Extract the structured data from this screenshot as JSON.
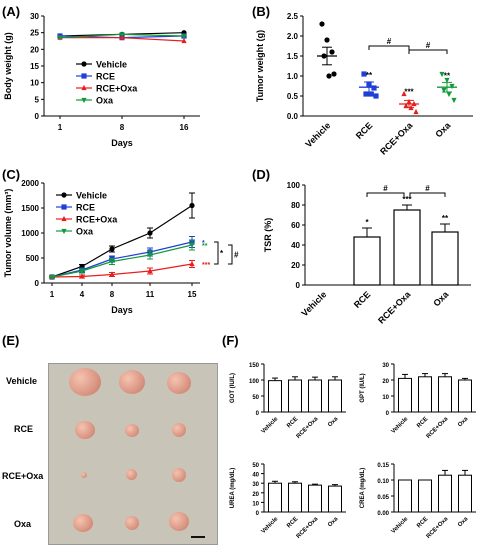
{
  "panels": {
    "A": "(A)",
    "B": "(B)",
    "C": "(C)",
    "D": "(D)",
    "E": "(E)",
    "F": "(F)"
  },
  "chart_data": [
    {
      "id": "A",
      "type": "line",
      "xlabel": "Days",
      "ylabel": "Body weight (g)",
      "x": [
        1,
        8,
        16
      ],
      "xticks": [
        "1",
        "8",
        "16"
      ],
      "yticks": [
        "0",
        "5",
        "10",
        "15",
        "20",
        "25",
        "30"
      ],
      "ylim": [
        0,
        30
      ],
      "legend": "inside-right",
      "series": [
        {
          "name": "Vehicle",
          "color": "#000000",
          "marker": "circle",
          "values": [
            24,
            24.5,
            25
          ]
        },
        {
          "name": "RCE",
          "color": "#1f3fd6",
          "marker": "square",
          "values": [
            24,
            23.5,
            24
          ]
        },
        {
          "name": "RCE+Oxa",
          "color": "#e81e1e",
          "marker": "triangle-up",
          "values": [
            23.5,
            23.5,
            22.5
          ]
        },
        {
          "name": "Oxa",
          "color": "#129a3a",
          "marker": "triangle-down",
          "values": [
            23.5,
            24.5,
            24
          ]
        }
      ]
    },
    {
      "id": "B",
      "type": "scatter",
      "ylabel": "Tumor weight (g)",
      "categories": [
        "Vehicle",
        "RCE",
        "RCE+Oxa",
        "Oxa"
      ],
      "colors": [
        "#000000",
        "#1f3fd6",
        "#e81e1e",
        "#129a3a"
      ],
      "markers": [
        "circle",
        "square",
        "triangle-up",
        "triangle-down"
      ],
      "yticks": [
        "0.0",
        "0.5",
        "1.0",
        "1.5",
        "2.0",
        "2.5"
      ],
      "ylim": [
        0,
        2.5
      ],
      "points": [
        [
          2.3,
          1.9,
          1.6,
          1.5,
          1.0,
          1.05
        ],
        [
          1.05,
          0.8,
          0.7,
          0.55,
          0.55,
          0.5
        ],
        [
          0.55,
          0.35,
          0.3,
          0.25,
          0.2,
          0.1
        ],
        [
          1.05,
          0.9,
          0.75,
          0.65,
          0.55,
          0.4
        ]
      ],
      "means": [
        1.5,
        0.72,
        0.3,
        0.72
      ],
      "errors": [
        0.22,
        0.13,
        0.09,
        0.12
      ],
      "stars": [
        "",
        "**",
        "***",
        "**"
      ],
      "brackets": [
        {
          "from": 1,
          "to": 2,
          "label": "#"
        },
        {
          "from": 2,
          "to": 3,
          "label": "#"
        }
      ]
    },
    {
      "id": "C",
      "type": "line",
      "xlabel": "Days",
      "ylabel": "Tumor volume (mm³)",
      "x": [
        1,
        4,
        8,
        11,
        15
      ],
      "xticks": [
        "1",
        "4",
        "8",
        "11",
        "15"
      ],
      "yticks": [
        "0",
        "500",
        "1000",
        "1500",
        "2000"
      ],
      "ylim": [
        0,
        2000
      ],
      "legend": "inside-top-left",
      "series": [
        {
          "name": "Vehicle",
          "color": "#000000",
          "marker": "circle",
          "values": [
            120,
            330,
            680,
            1000,
            1550
          ],
          "err": [
            20,
            40,
            60,
            100,
            250
          ]
        },
        {
          "name": "RCE",
          "color": "#1f3fd6",
          "marker": "square",
          "values": [
            120,
            260,
            480,
            620,
            820
          ],
          "err": [
            20,
            40,
            60,
            80,
            110
          ]
        },
        {
          "name": "RCE+Oxa",
          "color": "#e81e1e",
          "marker": "triangle-up",
          "values": [
            120,
            130,
            170,
            240,
            380
          ],
          "err": [
            15,
            30,
            40,
            60,
            70
          ]
        },
        {
          "name": "Oxa",
          "color": "#129a3a",
          "marker": "triangle-down",
          "values": [
            120,
            240,
            430,
            560,
            760
          ],
          "err": [
            20,
            40,
            60,
            80,
            100
          ]
        }
      ],
      "endstars": [
        "*",
        "***",
        "**"
      ],
      "brackets": [
        "*",
        "#"
      ]
    },
    {
      "id": "D",
      "type": "bar",
      "ylabel": "TSR (%)",
      "categories": [
        "Vehicle",
        "RCE",
        "RCE+Oxa",
        "Oxa"
      ],
      "values": [
        0,
        48,
        75,
        53
      ],
      "errors": [
        0,
        9,
        5,
        8
      ],
      "stars": [
        "",
        "*",
        "***",
        "**"
      ],
      "yticks": [
        "0",
        "20",
        "40",
        "60",
        "80",
        "100"
      ],
      "ylim": [
        0,
        100
      ],
      "brackets": [
        {
          "from": 1,
          "to": 2,
          "label": "#"
        },
        {
          "from": 2,
          "to": 3,
          "label": "#"
        }
      ]
    },
    {
      "id": "F1",
      "type": "bar",
      "ylabel": "GOT (IU/L)",
      "categories": [
        "Vehicle",
        "RCE",
        "RCE+Oxa",
        "Oxa"
      ],
      "values": [
        98,
        100,
        100,
        100
      ],
      "errors": [
        8,
        10,
        9,
        10
      ],
      "yticks": [
        "0",
        "50",
        "100",
        "150"
      ],
      "ylim": [
        0,
        150
      ]
    },
    {
      "id": "F2",
      "type": "bar",
      "ylabel": "GPT (IU/L)",
      "categories": [
        "Vehicle",
        "RCE",
        "RCE+Oxa",
        "Oxa"
      ],
      "values": [
        21,
        22,
        22,
        20
      ],
      "errors": [
        2.5,
        2,
        2,
        1
      ],
      "yticks": [
        "0",
        "10",
        "20",
        "30"
      ],
      "ylim": [
        0,
        30
      ]
    },
    {
      "id": "F3",
      "type": "bar",
      "ylabel": "UREA (mg/dL)",
      "categories": [
        "Vehicle",
        "RCE",
        "RCE+Oxa",
        "Oxa"
      ],
      "values": [
        30,
        30,
        28,
        27
      ],
      "errors": [
        2,
        1.5,
        1,
        1.5
      ],
      "yticks": [
        "0",
        "10",
        "20",
        "30",
        "40",
        "50"
      ],
      "ylim": [
        0,
        50
      ]
    },
    {
      "id": "F4",
      "type": "bar",
      "ylabel": "CREA (mg/dL)",
      "categories": [
        "Vehicle",
        "RCE",
        "RCE+Oxa",
        "Oxa"
      ],
      "values": [
        0.1,
        0.1,
        0.115,
        0.115
      ],
      "errors": [
        0,
        0,
        0.015,
        0.015
      ],
      "yticks": [
        "0.00",
        "0.05",
        "0.10",
        "0.15"
      ],
      "ylim": [
        0,
        0.15
      ]
    }
  ],
  "photo": {
    "rows": [
      "Vehicle",
      "RCE",
      "RCE+Oxa",
      "Oxa"
    ]
  }
}
